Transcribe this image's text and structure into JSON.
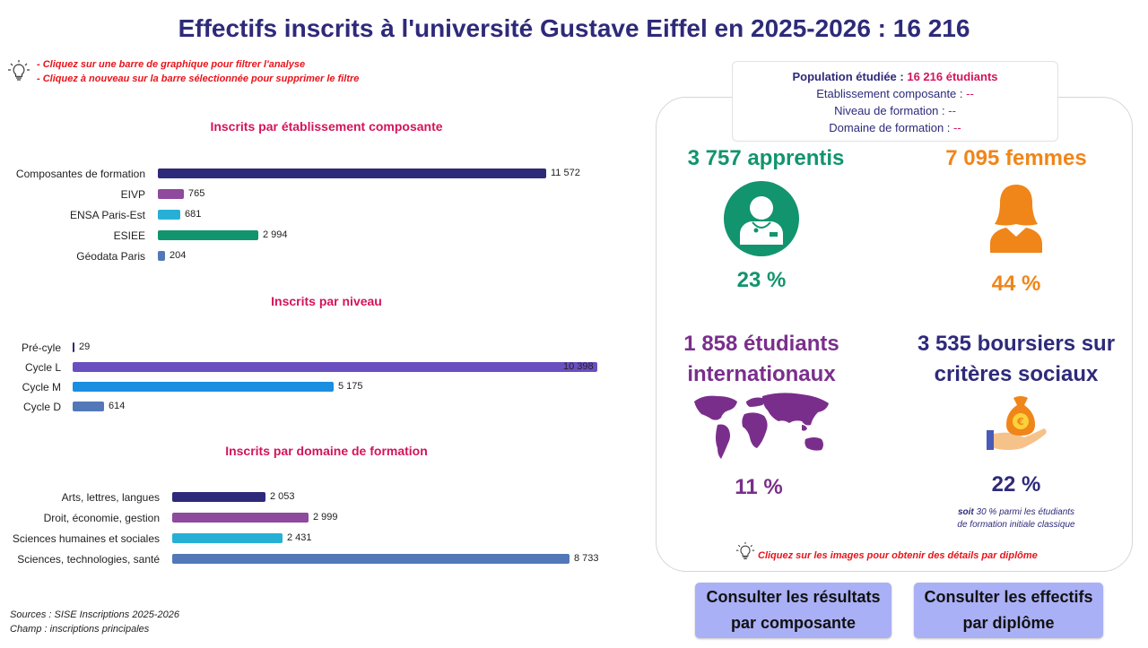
{
  "title": "Effectifs inscrits à l'université Gustave Eiffel en 2025-2026 : 16 216",
  "hints": [
    "- Cliquez sur une barre de graphique pour filtrer l'analyse",
    "- Cliquez à nouveau sur la barre sélectionnée pour supprimer le filtre"
  ],
  "chart_data": [
    {
      "type": "bar",
      "orientation": "horizontal",
      "title": "Inscrits par établissement composante",
      "categories": [
        "Composantes de formation",
        "EIVP",
        "ENSA Paris-Est",
        "ESIEE",
        "Géodata Paris"
      ],
      "values": [
        11572,
        765,
        681,
        2994,
        204
      ],
      "value_labels": [
        "11 572",
        "765",
        "681",
        "2 994",
        "204"
      ],
      "colors": [
        "#2e2a7a",
        "#8e4a9c",
        "#27b0d6",
        "#12946e",
        "#5278b8"
      ]
    },
    {
      "type": "bar",
      "orientation": "horizontal",
      "title": "Inscrits par niveau",
      "categories": [
        "Pré-cyle",
        "Cycle L",
        "Cycle M",
        "Cycle D"
      ],
      "values": [
        29,
        10398,
        5175,
        614
      ],
      "value_labels": [
        "29",
        "10 398",
        "5 175",
        "614"
      ],
      "colors": [
        "#2e2a7a",
        "#6a4fc0",
        "#1a8ee0",
        "#5278b8"
      ]
    },
    {
      "type": "bar",
      "orientation": "horizontal",
      "title": "Inscrits par domaine de formation",
      "categories": [
        "Arts, lettres, langues",
        "Droit, économie, gestion",
        "Sciences humaines et sociales",
        "Sciences, technologies, santé"
      ],
      "values": [
        2053,
        2999,
        2431,
        8733
      ],
      "value_labels": [
        "2 053",
        "2 999",
        "2 431",
        "8 733"
      ],
      "colors": [
        "#2e2a7a",
        "#8e4a9c",
        "#27b0d6",
        "#5278b8"
      ]
    }
  ],
  "population": {
    "label": "Population étudiée : ",
    "value": "16 216 étudiants",
    "filters": [
      {
        "label": "Etablissement composante : ",
        "value": "--"
      },
      {
        "label": "Niveau de formation : ",
        "value": "--"
      },
      {
        "label": "Domaine de formation : ",
        "value": "--"
      }
    ]
  },
  "kpis": {
    "apprentis": {
      "title": "3 757 apprentis",
      "pct": "23 %",
      "color": "#12946e",
      "icon": "apprentice-icon"
    },
    "femmes": {
      "title": "7 095 femmes",
      "pct": "44 %",
      "color": "#f08519",
      "icon": "woman-icon"
    },
    "internationaux": {
      "title_line1": "1 858 étudiants",
      "title_line2": "internationaux",
      "pct": "11 %",
      "color": "#7a2e8c",
      "icon": "world-map-icon"
    },
    "boursiers": {
      "title_line1": "3 535 boursiers sur",
      "title_line2": "critères sociaux",
      "pct": "22 %",
      "color": "#2e2a7a",
      "icon": "money-bag-icon",
      "note_bold": "soit",
      "note_rest": " 30 % parmi les étudiants",
      "note_line2": "de formation initiale classique"
    }
  },
  "panel_hint": "Cliquez sur les images pour obtenir des détails par diplôme",
  "buttons": {
    "resultats": {
      "line1": "Consulter les résultats",
      "line2": "par composante"
    },
    "effectifs": {
      "line1": "Consulter les effectifs",
      "line2": "par diplôme"
    }
  },
  "sources": {
    "line1": "Sources : SISE Inscriptions 2025-2026",
    "line2": "Champ : inscriptions principales"
  }
}
